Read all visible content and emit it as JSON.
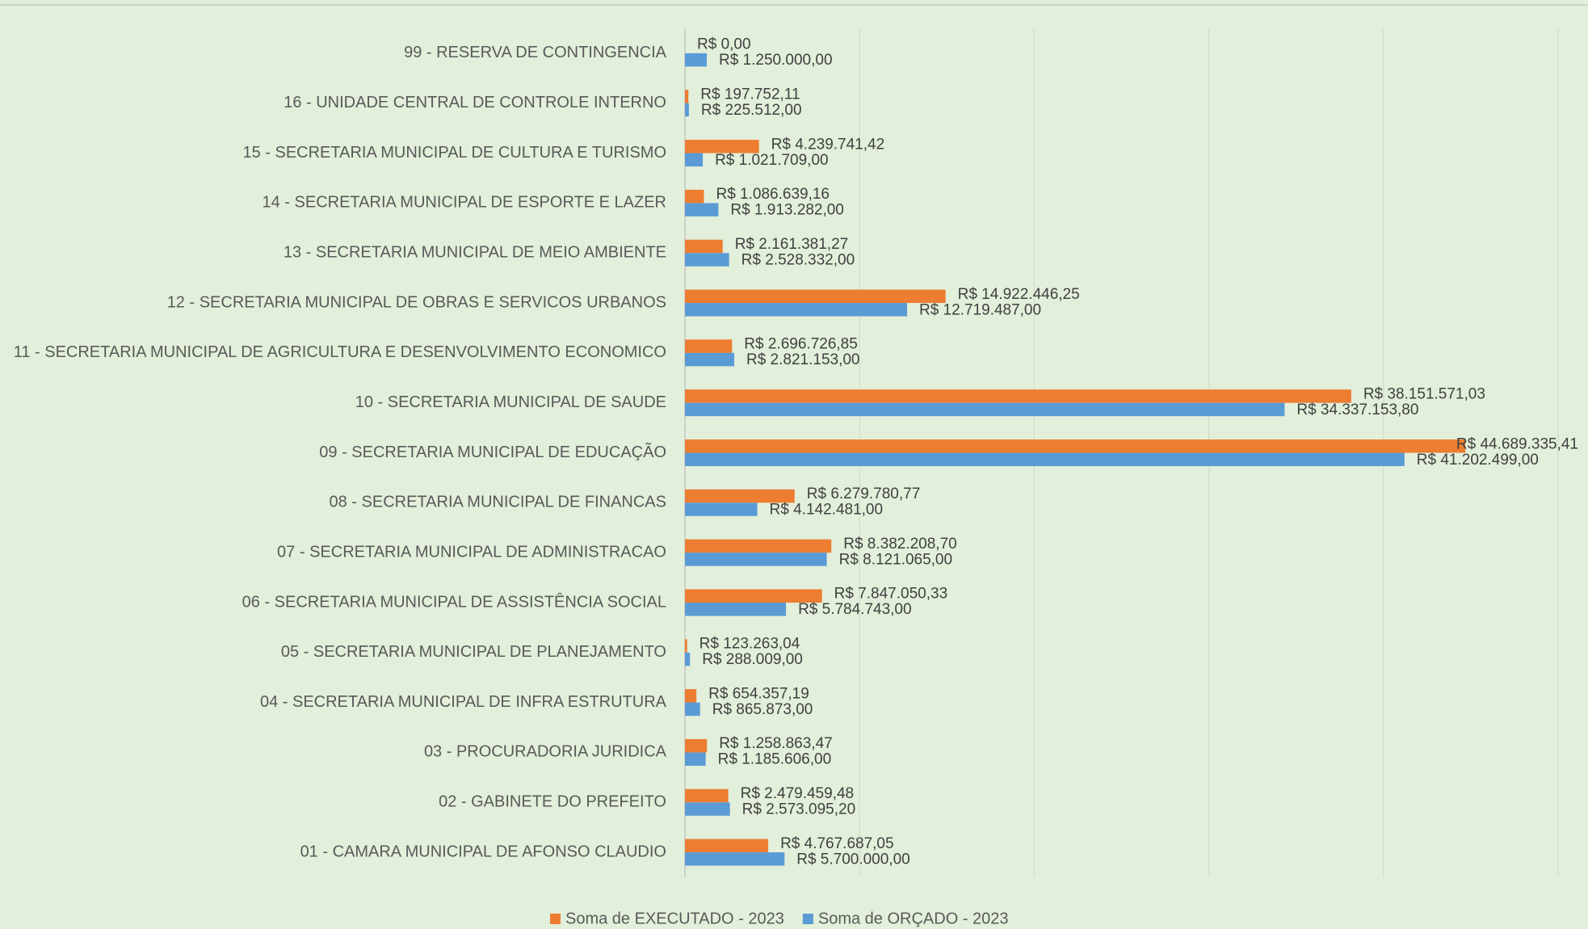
{
  "chart_data": {
    "type": "barh",
    "categories": [
      "99 - RESERVA DE CONTINGENCIA",
      "16 - UNIDADE CENTRAL DE CONTROLE INTERNO",
      "15 - SECRETARIA MUNICIPAL DE CULTURA E TURISMO",
      "14 - SECRETARIA MUNICIPAL DE ESPORTE E LAZER",
      "13 - SECRETARIA MUNICIPAL DE MEIO AMBIENTE",
      "12 - SECRETARIA MUNICIPAL DE OBRAS E SERVICOS URBANOS",
      "11 - SECRETARIA MUNICIPAL DE AGRICULTURA E DESENVOLVIMENTO ECONOMICO",
      "10 - SECRETARIA MUNICIPAL DE SAUDE",
      "09 - SECRETARIA MUNICIPAL DE EDUCAÇÃO",
      "08 - SECRETARIA MUNICIPAL DE FINANCAS",
      "07 - SECRETARIA MUNICIPAL DE ADMINISTRACAO",
      "06 - SECRETARIA MUNICIPAL DE ASSISTÊNCIA SOCIAL",
      "05 - SECRETARIA MUNICIPAL DE PLANEJAMENTO",
      "04 - SECRETARIA MUNICIPAL DE INFRA ESTRUTURA",
      "03 - PROCURADORIA JURIDICA",
      "02 - GABINETE DO PREFEITO",
      "01 - CAMARA MUNICIPAL DE AFONSO CLAUDIO"
    ],
    "series": [
      {
        "name": "Soma de EXECUTADO - 2023",
        "color": "#ed7d31",
        "values": [
          0,
          197752.11,
          4239741.42,
          1086639.16,
          2161381.27,
          14922446.25,
          2696726.85,
          38151571.03,
          44689335.41,
          6279780.77,
          8382208.7,
          7847050.33,
          123263.04,
          654357.19,
          1258863.47,
          2479459.48,
          4767687.05
        ],
        "value_labels": [
          "R$ 0,00",
          "R$ 197.752,11",
          "R$ 4.239.741,42",
          "R$ 1.086.639,16",
          "R$ 2.161.381,27",
          "R$ 14.922.446,25",
          "R$ 2.696.726,85",
          "R$ 38.151.571,03",
          "R$ 44.689.335,41",
          "R$ 6.279.780,77",
          "R$ 8.382.208,70",
          "R$ 7.847.050,33",
          "R$ 123.263,04",
          "R$ 654.357,19",
          "R$ 1.258.863,47",
          "R$ 2.479.459,48",
          "R$ 4.767.687,05"
        ]
      },
      {
        "name": "Soma de ORÇADO - 2023",
        "color": "#5b9bd5",
        "values": [
          1250000,
          225512,
          1021709,
          1913282,
          2528332,
          12719487,
          2821153,
          34337153.8,
          41202499,
          4142481,
          8121065,
          5784743,
          288009,
          865873,
          1185606,
          2573095.2,
          5700000
        ],
        "value_labels": [
          "R$ 1.250.000,00",
          "R$ 225.512,00",
          "R$ 1.021.709,00",
          "R$ 1.913.282,00",
          "R$ 2.528.332,00",
          "R$ 12.719.487,00",
          "R$ 2.821.153,00",
          "R$ 34.337.153,80",
          "R$ 41.202.499,00",
          "R$ 4.142.481,00",
          "R$ 8.121.065,00",
          "R$ 5.784.743,00",
          "R$ 288.009,00",
          "R$ 865.873,00",
          "R$ 1.185.606,00",
          "R$ 2.573.095,20",
          "R$ 5.700.000,00"
        ]
      }
    ],
    "xlim": [
      0,
      50000000
    ],
    "xticks": [
      0,
      10000000,
      20000000,
      30000000,
      40000000,
      50000000
    ],
    "grid": true,
    "legend": "bottom"
  }
}
